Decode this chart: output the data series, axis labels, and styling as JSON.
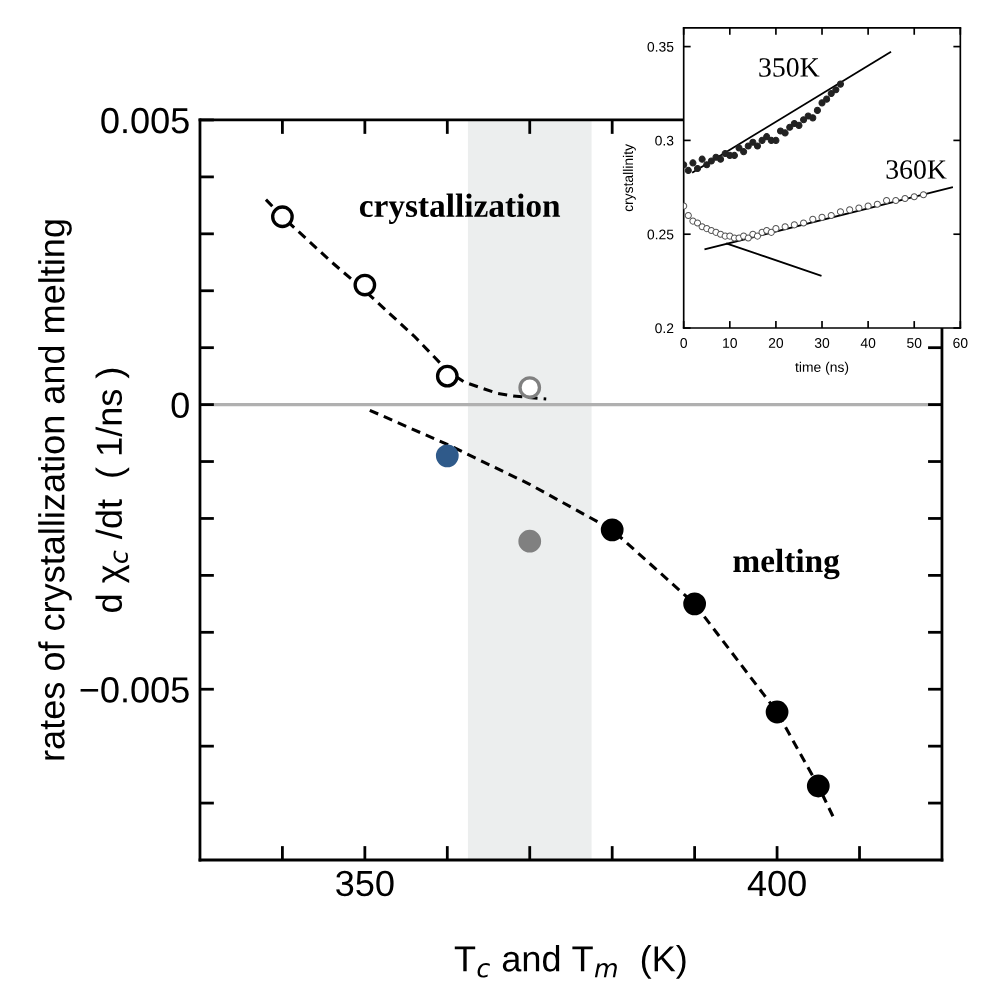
{
  "chart_data": [
    {
      "type": "scatter",
      "xlabel": "T$_{c}$ and T$_{m}$  (K)",
      "ylabel": "rates of crystallization and melting\nd χ$_{c}$ /dt  ( 1/ns )",
      "xlim": [
        330,
        420
      ],
      "xticks": [
        {
          "value": 340,
          "label": null
        },
        350,
        {
          "value": 360,
          "label": null
        },
        {
          "value": 370,
          "label": null
        },
        {
          "value": 380,
          "label": null
        },
        {
          "value": 390,
          "label": null
        },
        400,
        {
          "value": 410,
          "label": null
        }
      ],
      "ylim": [
        -0.008,
        0.005
      ],
      "yticks": [
        {
          "value": -0.007,
          "label": null
        },
        {
          "value": -0.006,
          "label": null
        },
        {
          "value": -0.005,
          "label": "−0.005"
        },
        {
          "value": -0.004,
          "label": null
        },
        {
          "value": -0.003,
          "label": null
        },
        {
          "value": -0.002,
          "label": null
        },
        {
          "value": -0.001,
          "label": null
        },
        0,
        {
          "value": 0.001,
          "label": null
        },
        {
          "value": 0.002,
          "label": null
        },
        {
          "value": 0.003,
          "label": null
        },
        {
          "value": 0.004,
          "label": null
        },
        0.005
      ],
      "grid": false,
      "series": [
        {
          "marker": "circle",
          "x": [
            340,
            350,
            360,
            370
          ],
          "values": [
            0.0033,
            0.0021,
            0.0005,
            0.0003
          ],
          "colors": [
            "#000000",
            "#000000",
            "#000000",
            "#808080"
          ]
        },
        {
          "marker": "circle",
          "x": [
            360,
            370,
            380,
            390,
            400,
            405
          ],
          "values": [
            -0.0009,
            -0.0024,
            -0.0022,
            -0.0035,
            -0.0054,
            -0.0067
          ],
          "colors": [
            "#2f5a8a",
            "#808080",
            "#000000",
            "#000000",
            "#000000",
            "#000000"
          ]
        },
        {
          "type": "line",
          "line_style": "dashed",
          "color": "#000000",
          "x": [
            338,
            340,
            343,
            346,
            350,
            353,
            356,
            358,
            360,
            362,
            364,
            366,
            368,
            372
          ],
          "values": [
            0.0036,
            0.0033,
            0.0029,
            0.0025,
            0.002,
            0.0016,
            0.0012,
            0.0009,
            0.0006,
            0.0004,
            0.0003,
            0.0002,
            0.00015,
            0.0001
          ]
        },
        {
          "type": "line",
          "line_style": "dashed",
          "color": "#000000",
          "x": [
            350.6,
            360,
            370,
            380,
            390,
            400,
            405,
            407
          ],
          "values": [
            -0.0001,
            -0.0007,
            -0.0014,
            -0.0022,
            -0.0035,
            -0.0054,
            -0.0067,
            -0.0073
          ]
        }
      ],
      "bands": [
        {
          "axis": "x",
          "from": 362.5,
          "to": 377.5,
          "color": "#eceeee"
        }
      ],
      "ref_lines": [
        {
          "axis": "y",
          "value": 0,
          "color": "#b0b0b0"
        }
      ],
      "annotations": [
        "crystallization",
        "melting"
      ]
    },
    {
      "type": "scatter",
      "xlabel": "time (ns)",
      "ylabel": "crystallinity",
      "xlim": [
        0,
        60
      ],
      "xticks": [
        0,
        10,
        20,
        30,
        40,
        50,
        60
      ],
      "ylim": [
        0.2,
        0.36
      ],
      "yticks": [
        0.2,
        0.25,
        0.3,
        0.35
      ],
      "grid": false,
      "series": [
        {
          "marker": "circle",
          "color": "#222222",
          "x": [
            0,
            1,
            2,
            3,
            4,
            5,
            6,
            7,
            8,
            9,
            10,
            11,
            12,
            13,
            14,
            15,
            16,
            17,
            18,
            19,
            20,
            21,
            22,
            23,
            24,
            25,
            26,
            27,
            28,
            29,
            30,
            31,
            32,
            33,
            34
          ],
          "values": [
            0.287,
            0.284,
            0.288,
            0.285,
            0.29,
            0.287,
            0.289,
            0.291,
            0.29,
            0.293,
            0.292,
            0.292,
            0.296,
            0.294,
            0.297,
            0.299,
            0.297,
            0.3,
            0.302,
            0.3,
            0.3,
            0.305,
            0.304,
            0.307,
            0.309,
            0.308,
            0.311,
            0.313,
            0.312,
            0.316,
            0.32,
            0.322,
            0.325,
            0.327,
            0.33
          ]
        },
        {
          "marker": "circle",
          "color": "#555555",
          "x": [
            0,
            1,
            2,
            3,
            4,
            5,
            6,
            7,
            8,
            9,
            10,
            11,
            12,
            13,
            14,
            15,
            16,
            17,
            18,
            19,
            20,
            22,
            24,
            26,
            28,
            30,
            32,
            34,
            36,
            38,
            40,
            42,
            44,
            46,
            48,
            50,
            52
          ],
          "values": [
            0.265,
            0.26,
            0.257,
            0.256,
            0.254,
            0.253,
            0.252,
            0.251,
            0.25,
            0.249,
            0.249,
            0.248,
            0.248,
            0.249,
            0.248,
            0.25,
            0.249,
            0.251,
            0.252,
            0.251,
            0.253,
            0.254,
            0.255,
            0.256,
            0.258,
            0.259,
            0.26,
            0.262,
            0.263,
            0.264,
            0.265,
            0.266,
            0.268,
            0.268,
            0.269,
            0.27,
            0.271
          ]
        },
        {
          "type": "line",
          "line_style": "solid",
          "color": "#000000",
          "x": [
            2,
            44.8
          ],
          "values": [
            0.283,
            0.347
          ]
        },
        {
          "type": "line",
          "line_style": "solid",
          "color": "#000000",
          "x": [
            4.7,
            58.2
          ],
          "values": [
            0.242,
            0.275
          ]
        },
        {
          "type": "line",
          "line_style": "solid",
          "color": "#000000",
          "x": [
            9.4,
            29.7
          ],
          "values": [
            0.245,
            0.228
          ]
        }
      ],
      "annotations": [
        "350K",
        "360K"
      ]
    }
  ]
}
